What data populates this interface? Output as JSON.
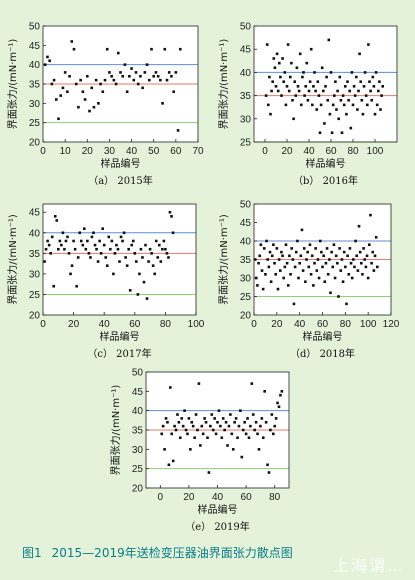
{
  "figure": {
    "number": "图1",
    "caption": "2015—2019年送检变压器油界面张力散点图",
    "watermark": "上海谓…"
  },
  "chart_data": [
    {
      "type": "scatter",
      "caption": "（a） 2015年",
      "xlabel": "样品编号",
      "ylabel": "界面张力/(mN·m⁻¹)",
      "xlim": [
        0,
        70
      ],
      "xticks": [
        0,
        10,
        20,
        30,
        40,
        50,
        60,
        70
      ],
      "ylim": [
        20,
        50
      ],
      "yticks": [
        20,
        25,
        30,
        35,
        40,
        45,
        50
      ],
      "ref_lines": [
        {
          "y": 40,
          "color": "#5b8fd6"
        },
        {
          "y": 35,
          "color": "#e07a6a"
        },
        {
          "y": 25,
          "color": "#8ecf70"
        }
      ],
      "x": [
        1,
        2,
        3,
        4,
        5,
        6,
        7,
        8,
        9,
        10,
        11,
        12,
        13,
        14,
        15,
        16,
        17,
        18,
        19,
        20,
        21,
        22,
        23,
        24,
        25,
        26,
        27,
        28,
        29,
        30,
        31,
        32,
        33,
        34,
        35,
        36,
        37,
        38,
        39,
        40,
        41,
        42,
        43,
        44,
        45,
        46,
        47,
        48,
        49,
        50,
        51,
        52,
        53,
        54,
        55,
        56,
        57,
        58,
        59,
        60,
        61,
        62
      ],
      "y": [
        40,
        42,
        41,
        35,
        36,
        31,
        26,
        32,
        34,
        38,
        33,
        37,
        46,
        44,
        35,
        29,
        36,
        33,
        31,
        37,
        28,
        34,
        29,
        36,
        30,
        35,
        33,
        36,
        44,
        38,
        37,
        36,
        35,
        43,
        38,
        37,
        40,
        33,
        37,
        39,
        36,
        38,
        35,
        37,
        34,
        38,
        40,
        36,
        44,
        37,
        38,
        37,
        36,
        30,
        44,
        36,
        38,
        37,
        33,
        38,
        23,
        44
      ]
    },
    {
      "type": "scatter",
      "caption": "（b） 2016年",
      "xlabel": "样品编号",
      "ylabel": "界面张力/(mN·m⁻¹)",
      "xlim": [
        -10,
        120
      ],
      "xticks": [
        0,
        20,
        40,
        60,
        80,
        100
      ],
      "ylim": [
        25,
        50
      ],
      "yticks": [
        25,
        30,
        35,
        40,
        45,
        50
      ],
      "ref_lines": [
        {
          "y": 40,
          "color": "#5b8fd6"
        },
        {
          "y": 35,
          "color": "#e07a6a"
        },
        {
          "y": 25,
          "color": "#8ecf70"
        }
      ],
      "x": [
        1,
        2,
        3,
        4,
        5,
        6,
        7,
        8,
        9,
        10,
        11,
        12,
        13,
        14,
        15,
        16,
        17,
        18,
        19,
        20,
        21,
        22,
        23,
        24,
        25,
        26,
        27,
        28,
        29,
        30,
        31,
        32,
        33,
        34,
        35,
        36,
        37,
        38,
        39,
        40,
        41,
        42,
        43,
        44,
        45,
        46,
        47,
        48,
        49,
        50,
        51,
        52,
        53,
        54,
        55,
        56,
        57,
        58,
        59,
        60,
        61,
        62,
        63,
        64,
        65,
        66,
        67,
        68,
        69,
        70,
        71,
        72,
        73,
        74,
        75,
        76,
        77,
        78,
        79,
        80,
        81,
        82,
        83,
        84,
        85,
        86,
        87,
        88,
        89,
        90,
        91,
        92,
        93,
        94,
        95,
        96,
        97,
        98,
        99,
        100,
        101,
        102,
        103,
        104,
        105,
        106,
        107
      ],
      "y": [
        35,
        46,
        33,
        39,
        31,
        36,
        38,
        43,
        41,
        37,
        44,
        36,
        42,
        39,
        35,
        43,
        38,
        40,
        33,
        37,
        46,
        36,
        39,
        42,
        34,
        30,
        38,
        35,
        41,
        37,
        36,
        44,
        33,
        39,
        40,
        35,
        37,
        42,
        34,
        36,
        38,
        45,
        33,
        37,
        40,
        36,
        32,
        38,
        35,
        27,
        33,
        41,
        36,
        29,
        37,
        39,
        34,
        47,
        31,
        40,
        27,
        33,
        35,
        38,
        32,
        36,
        30,
        39,
        34,
        27,
        35,
        33,
        37,
        31,
        38,
        34,
        36,
        28,
        40,
        33,
        37,
        35,
        39,
        32,
        36,
        44,
        38,
        34,
        31,
        37,
        40,
        35,
        33,
        46,
        38,
        36,
        34,
        39,
        37,
        31,
        40,
        33,
        36,
        38,
        32,
        35,
        37
      ]
    },
    {
      "type": "scatter",
      "caption": "（c） 2017年",
      "xlabel": "样品编号",
      "ylabel": "界面张力/(mN·m⁻¹)",
      "xlim": [
        0,
        100
      ],
      "xticks": [
        0,
        20,
        40,
        60,
        80,
        100
      ],
      "ylim": [
        20,
        47
      ],
      "yticks": [
        20,
        25,
        30,
        35,
        40,
        45
      ],
      "ref_lines": [
        {
          "y": 40,
          "color": "#5b8fd6"
        },
        {
          "y": 35,
          "color": "#e07a6a"
        },
        {
          "y": 25,
          "color": "#8ecf70"
        }
      ],
      "x": [
        1,
        2,
        3,
        4,
        5,
        6,
        7,
        8,
        9,
        10,
        11,
        12,
        13,
        14,
        15,
        16,
        17,
        18,
        19,
        20,
        21,
        22,
        23,
        24,
        25,
        26,
        27,
        28,
        29,
        30,
        31,
        32,
        33,
        34,
        35,
        36,
        37,
        38,
        39,
        40,
        41,
        42,
        43,
        44,
        45,
        46,
        47,
        48,
        49,
        50,
        51,
        52,
        53,
        54,
        55,
        56,
        57,
        58,
        59,
        60,
        61,
        62,
        63,
        64,
        65,
        66,
        67,
        68,
        69,
        70,
        71,
        72,
        73,
        74,
        75,
        76,
        77,
        78,
        79,
        80,
        81,
        82,
        83,
        84,
        85
      ],
      "y": [
        33,
        36,
        38,
        37,
        35,
        39,
        27,
        44,
        43,
        36,
        38,
        37,
        40,
        36,
        38,
        39,
        35,
        30,
        32,
        38,
        36,
        27,
        34,
        40,
        38,
        37,
        41,
        36,
        38,
        35,
        34,
        39,
        40,
        37,
        36,
        33,
        38,
        35,
        41,
        37,
        34,
        32,
        39,
        36,
        38,
        30,
        35,
        37,
        36,
        33,
        39,
        38,
        40,
        34,
        32,
        36,
        26,
        37,
        38,
        35,
        33,
        25,
        30,
        36,
        34,
        28,
        37,
        24,
        33,
        36,
        35,
        32,
        30,
        38,
        34,
        37,
        33,
        36,
        38,
        36,
        35,
        34,
        45,
        44,
        40
      ]
    },
    {
      "type": "scatter",
      "caption": "（d） 2018年",
      "xlabel": "样品编号",
      "ylabel": "界面张力/(mN·m⁻¹)",
      "xlim": [
        0,
        120
      ],
      "xticks": [
        0,
        20,
        40,
        60,
        80,
        100,
        120
      ],
      "ylim": [
        20,
        50
      ],
      "yticks": [
        20,
        25,
        30,
        35,
        40,
        45,
        50
      ],
      "ref_lines": [
        {
          "y": 40,
          "color": "#5b8fd6"
        },
        {
          "y": 35,
          "color": "#e07a6a"
        },
        {
          "y": 25,
          "color": "#8ecf70"
        }
      ],
      "x": [
        1,
        2,
        3,
        4,
        5,
        6,
        7,
        8,
        9,
        10,
        11,
        12,
        13,
        14,
        15,
        16,
        17,
        18,
        19,
        20,
        21,
        22,
        23,
        24,
        25,
        26,
        27,
        28,
        29,
        30,
        31,
        32,
        33,
        34,
        35,
        36,
        37,
        38,
        39,
        40,
        41,
        42,
        43,
        44,
        45,
        46,
        47,
        48,
        49,
        50,
        51,
        52,
        53,
        54,
        55,
        56,
        57,
        58,
        59,
        60,
        61,
        62,
        63,
        64,
        65,
        66,
        67,
        68,
        69,
        70,
        71,
        72,
        73,
        74,
        75,
        76,
        77,
        78,
        79,
        80,
        81,
        82,
        83,
        84,
        85,
        86,
        87,
        88,
        89,
        90,
        91,
        92,
        93,
        94,
        95,
        96,
        97,
        98,
        99,
        100,
        101,
        102,
        103,
        104,
        105,
        106,
        107,
        108
      ],
      "y": [
        35,
        30,
        28,
        34,
        36,
        39,
        32,
        27,
        38,
        31,
        40,
        35,
        33,
        37,
        29,
        36,
        39,
        34,
        31,
        38,
        27,
        35,
        32,
        37,
        36,
        30,
        33,
        39,
        34,
        28,
        36,
        31,
        38,
        35,
        23,
        33,
        37,
        40,
        30,
        34,
        36,
        43,
        32,
        38,
        29,
        35,
        37,
        33,
        39,
        31,
        36,
        28,
        34,
        38,
        32,
        35,
        30,
        40,
        37,
        33,
        36,
        29,
        34,
        38,
        31,
        35,
        26,
        37,
        33,
        39,
        30,
        36,
        34,
        25,
        38,
        32,
        35,
        29,
        37,
        33,
        23,
        36,
        31,
        38,
        34,
        30,
        35,
        33,
        40,
        36,
        32,
        44,
        37,
        34,
        31,
        38,
        35,
        33,
        36,
        30,
        39,
        47,
        34,
        37,
        32,
        36,
        41,
        33
      ]
    },
    {
      "type": "scatter",
      "caption": "（e） 2019年",
      "xlabel": "样品编号",
      "ylabel": "界面张力/(mN·m⁻¹)",
      "xlim": [
        -10,
        90
      ],
      "xticks": [
        0,
        20,
        40,
        60,
        80
      ],
      "ylim": [
        20,
        50
      ],
      "yticks": [
        20,
        25,
        30,
        35,
        40,
        45,
        50
      ],
      "ref_lines": [
        {
          "y": 40,
          "color": "#5b8fd6"
        },
        {
          "y": 35,
          "color": "#e07a6a"
        },
        {
          "y": 25,
          "color": "#8ecf70"
        }
      ],
      "x": [
        1,
        2,
        3,
        4,
        5,
        6,
        7,
        8,
        9,
        10,
        11,
        12,
        13,
        14,
        15,
        16,
        17,
        18,
        19,
        20,
        21,
        22,
        23,
        24,
        25,
        26,
        27,
        28,
        29,
        30,
        31,
        32,
        33,
        34,
        35,
        36,
        37,
        38,
        39,
        40,
        41,
        42,
        43,
        44,
        45,
        46,
        47,
        48,
        49,
        50,
        51,
        52,
        53,
        54,
        55,
        56,
        57,
        58,
        59,
        60,
        61,
        62,
        63,
        64,
        65,
        66,
        67,
        68,
        69,
        70,
        71,
        72,
        73,
        74,
        75,
        76,
        77,
        78,
        79,
        80,
        81,
        82,
        83,
        84,
        85
      ],
      "y": [
        34,
        36,
        30,
        38,
        37,
        26,
        46,
        34,
        27,
        36,
        35,
        39,
        37,
        33,
        38,
        36,
        40,
        35,
        34,
        38,
        30,
        37,
        36,
        33,
        39,
        35,
        47,
        31,
        36,
        34,
        38,
        37,
        33,
        24,
        36,
        39,
        35,
        38,
        34,
        37,
        40,
        36,
        33,
        38,
        35,
        37,
        31,
        36,
        39,
        34,
        30,
        37,
        38,
        33,
        36,
        40,
        28,
        35,
        37,
        34,
        38,
        33,
        36,
        47,
        39,
        35,
        37,
        34,
        30,
        36,
        38,
        33,
        45,
        37,
        26,
        24,
        35,
        39,
        34,
        36,
        38,
        42,
        41,
        44,
        45
      ]
    }
  ]
}
